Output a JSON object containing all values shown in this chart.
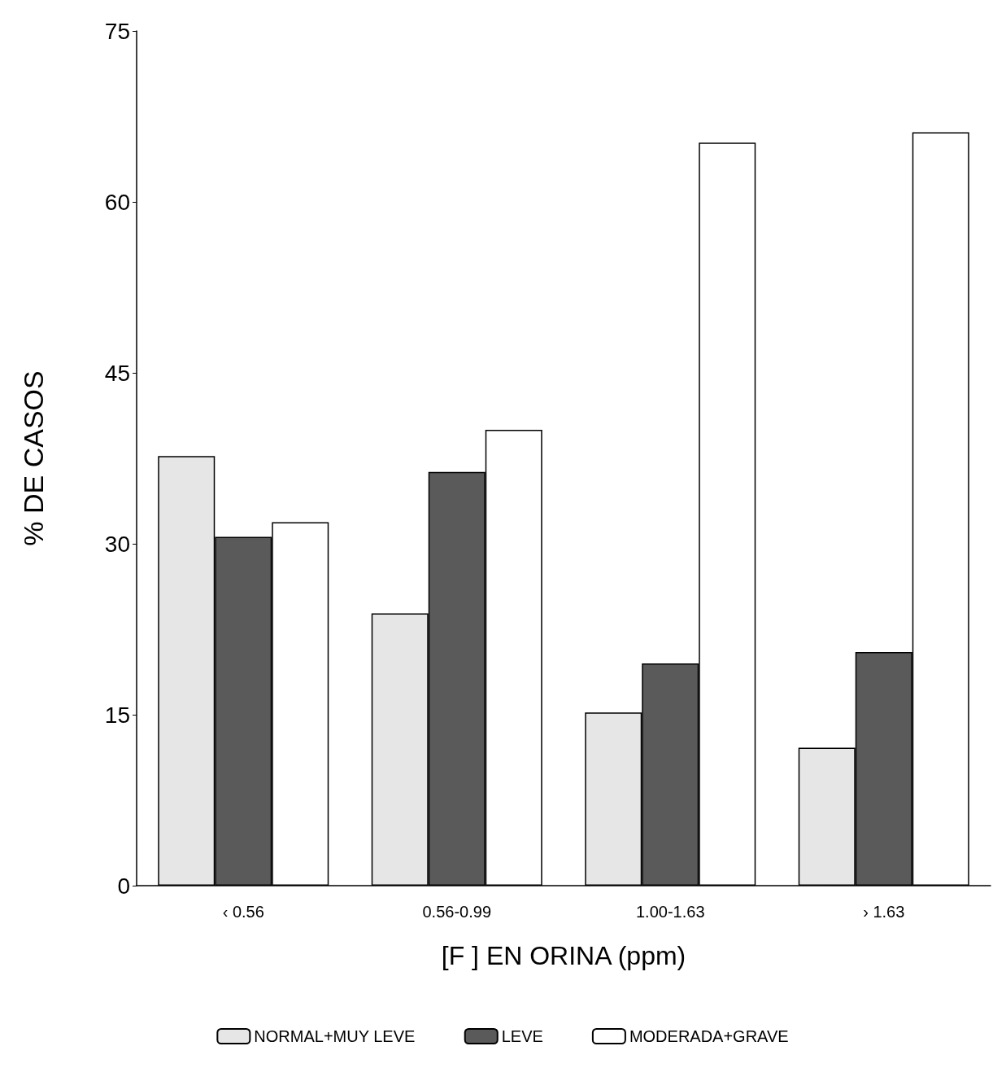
{
  "chart_data": {
    "type": "bar",
    "xlabel": "[F ] EN ORINA (ppm)",
    "ylabel": "% DE CASOS",
    "categories": [
      "‹ 0.56",
      "0.56-0.99",
      "1.00-1.63",
      "› 1.63"
    ],
    "series": [
      {
        "name": "NORMAL+MUY LEVE",
        "color": "#e6e6e6",
        "values": [
          37.7,
          23.9,
          15.2,
          12.1
        ]
      },
      {
        "name": "LEVE",
        "color": "#5a5a5a",
        "values": [
          30.6,
          36.3,
          19.5,
          20.5
        ]
      },
      {
        "name": "MODERADA+GRAVE",
        "color": "#ffffff",
        "values": [
          31.9,
          40.0,
          65.2,
          66.1
        ]
      }
    ],
    "ylim": [
      0,
      75
    ],
    "yticks": [
      0,
      15,
      30,
      45,
      60,
      75
    ],
    "grid": false,
    "legend": "bottom"
  }
}
